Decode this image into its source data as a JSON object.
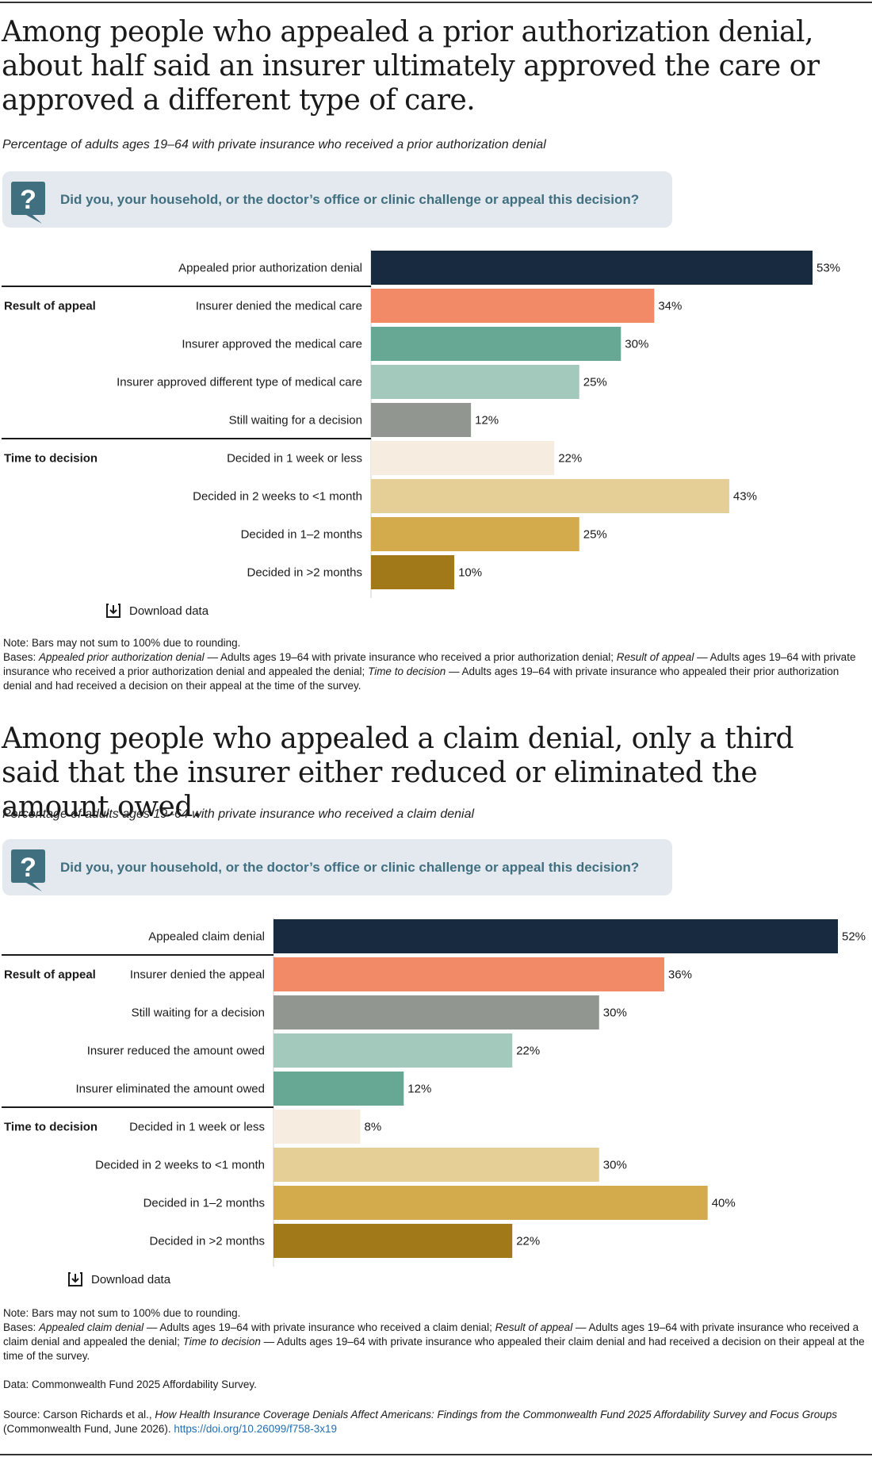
{
  "figures": [
    {
      "title": "Among people who appealed a prior authorization denial, about half said an insurer ultimately approved the care or approved a different type of care.",
      "subtitle": "Percentage of adults ages 19–64 with private insurance who received a prior authorization denial",
      "question": "Did you, your household, or the doctor’s office or clinic challenge or appeal this decision?",
      "download_label": "Download data",
      "note": "Note: Bars may not sum to 100% due to rounding.",
      "bases": {
        "prefix": "Bases: ",
        "b1_term": "Appealed prior authorization denial",
        "b1_text": " — Adults ages 19–64 with private insurance who received a prior authorization denial; ",
        "b2_term": "Result of appeal",
        "b2_text": " — Adults ages 19–64 with private insurance who received a prior authorization denial and appealed the denial; ",
        "b3_term": "Time to decision",
        "b3_text": " — Adults ages 19–64 with private insurance who appealed their prior authorization denial and had received a decision on their appeal at the time of the survey."
      }
    },
    {
      "title": "Among people who appealed a claim denial, only a third said that the insurer either reduced or eliminated the amount owed.",
      "subtitle": "Percentage of adults ages 19–64 with private insurance who received a claim denial",
      "question": "Did you, your household, or the doctor’s office or clinic challenge or appeal this decision?",
      "download_label": "Download data",
      "note": "Note: Bars may not sum to 100% due to rounding.",
      "bases": {
        "prefix": "Bases: ",
        "b1_term": "Appealed claim denial",
        "b1_text": " — Adults ages 19–64 with private insurance who received a claim denial; ",
        "b2_term": "Result of appeal",
        "b2_text": " — Adults ages 19–64 with private insurance who received a claim denial and appealed the denial; ",
        "b3_term": "Time to decision",
        "b3_text": " — Adults ages 19–64 with private insurance who appealed their claim denial and had received a decision on their appeal at the time of the survey."
      }
    }
  ],
  "data_source": "Data: Commonwealth Fund 2025 Affordability Survey.",
  "source": {
    "prefix": "Source: Carson Richards et al., ",
    "title": "How Health Insurance Coverage Denials Affect Americans: Findings from the Commonwealth Fund 2025 Affordability Survey and Focus Groups",
    "suffix": " (Commonwealth Fund, June 2026). ",
    "doi": "https://doi.org/10.26099/f758-3x19"
  },
  "chart_data": [
    {
      "type": "bar",
      "orientation": "horizontal",
      "xlim": [
        0,
        53
      ],
      "value_suffix": "%",
      "groups": [
        "",
        "Result of appeal",
        "Result of appeal",
        "Result of appeal",
        "Result of appeal",
        "Time to decision",
        "Time to decision",
        "Time to decision",
        "Time to decision"
      ],
      "categories": [
        "Appealed prior authorization denial",
        "Insurer denied the medical care",
        "Insurer approved the medical care",
        "Insurer approved different type of medical care",
        "Still waiting for a decision",
        "Decided in 1 week or less",
        "Decided in 2 weeks to <1 month",
        "Decided in 1–2 months",
        "Decided in >2 months"
      ],
      "values": [
        53,
        34,
        30,
        25,
        12,
        22,
        43,
        25,
        10
      ],
      "colors": [
        "#172a40",
        "#f28a67",
        "#66a894",
        "#a3c9bc",
        "#929690",
        "#f6ede0",
        "#e6cf96",
        "#d4ab4c",
        "#a17918"
      ]
    },
    {
      "type": "bar",
      "orientation": "horizontal",
      "xlim": [
        0,
        52
      ],
      "value_suffix": "%",
      "groups": [
        "",
        "Result of appeal",
        "Result of appeal",
        "Result of appeal",
        "Result of appeal",
        "Time to decision",
        "Time to decision",
        "Time to decision",
        "Time to decision"
      ],
      "categories": [
        "Appealed claim denial",
        "Insurer denied the appeal",
        "Still waiting for a decision",
        "Insurer reduced the amount owed",
        "Insurer eliminated the amount owed",
        "Decided in 1 week or less",
        "Decided in 2 weeks to <1 month",
        "Decided in 1–2 months",
        "Decided in >2 months"
      ],
      "values": [
        52,
        36,
        30,
        22,
        12,
        8,
        30,
        40,
        22
      ],
      "colors": [
        "#172a40",
        "#f28a67",
        "#929690",
        "#a3c9bc",
        "#66a894",
        "#f6ede0",
        "#e6cf96",
        "#d4ab4c",
        "#a17918"
      ]
    }
  ]
}
